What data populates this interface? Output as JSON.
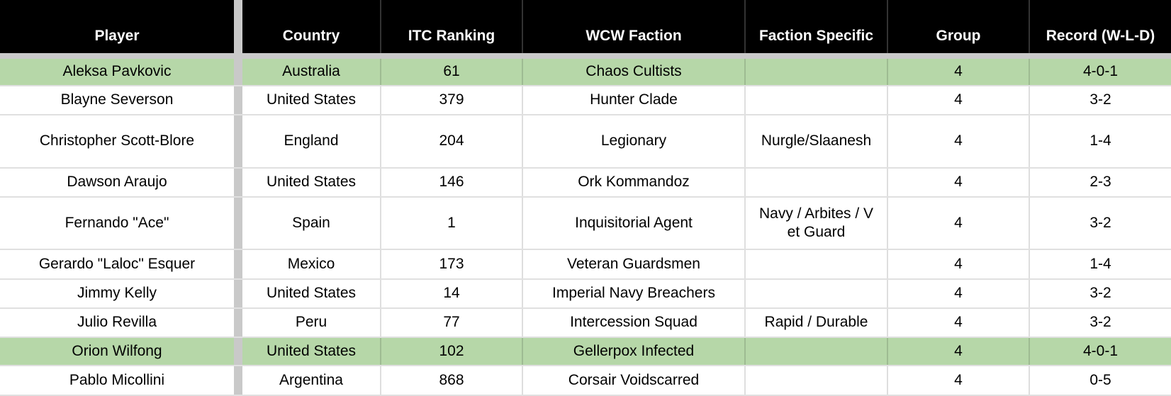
{
  "table": {
    "columns": [
      {
        "key": "player",
        "label": "Player"
      },
      {
        "key": "country",
        "label": "Country"
      },
      {
        "key": "itc_ranking",
        "label": "ITC Ranking"
      },
      {
        "key": "wcw_faction",
        "label": "WCW Faction"
      },
      {
        "key": "faction_specific",
        "label": "Faction Specific"
      },
      {
        "key": "group",
        "label": "Group"
      },
      {
        "key": "record",
        "label": "Record (W-L-D)"
      }
    ],
    "rows": [
      {
        "player": "Aleksa Pavkovic",
        "country": "Australia",
        "itc_ranking": "61",
        "wcw_faction": "Chaos Cultists",
        "faction_specific": "",
        "group": "4",
        "record": "4-0-1",
        "highlighted": true
      },
      {
        "player": "Blayne Severson",
        "country": "United States",
        "itc_ranking": "379",
        "wcw_faction": "Hunter Clade",
        "faction_specific": "",
        "group": "4",
        "record": "3-2",
        "highlighted": false
      },
      {
        "player": "Christopher Scott-Blore",
        "country": "England",
        "itc_ranking": "204",
        "wcw_faction": "Legionary",
        "faction_specific": "Nurgle/Slaanesh",
        "group": "4",
        "record": "1-4",
        "highlighted": false
      },
      {
        "player": "Dawson Araujo",
        "country": "United States",
        "itc_ranking": "146",
        "wcw_faction": "Ork Kommandoz",
        "faction_specific": "",
        "group": "4",
        "record": "2-3",
        "highlighted": false
      },
      {
        "player": "Fernando \"Ace\"",
        "country": "Spain",
        "itc_ranking": "1",
        "wcw_faction": "Inquisitorial Agent",
        "faction_specific": "Navy / Arbites / Vet Guard",
        "group": "4",
        "record": "3-2",
        "highlighted": false
      },
      {
        "player": "Gerardo \"Laloc\" Esquer",
        "country": "Mexico",
        "itc_ranking": "173",
        "wcw_faction": "Veteran Guardsmen",
        "faction_specific": "",
        "group": "4",
        "record": "1-4",
        "highlighted": false
      },
      {
        "player": "Jimmy Kelly",
        "country": "United States",
        "itc_ranking": "14",
        "wcw_faction": "Imperial Navy Breachers",
        "faction_specific": "",
        "group": "4",
        "record": "3-2",
        "highlighted": false
      },
      {
        "player": "Julio Revilla",
        "country": "Peru",
        "itc_ranking": "77",
        "wcw_faction": "Intercession Squad",
        "faction_specific": "Rapid / Durable",
        "group": "4",
        "record": "3-2",
        "highlighted": false
      },
      {
        "player": "Orion Wilfong",
        "country": "United States",
        "itc_ranking": "102",
        "wcw_faction": "Gellerpox Infected",
        "faction_specific": "",
        "group": "4",
        "record": "4-0-1",
        "highlighted": true
      },
      {
        "player": "Pablo Micollini",
        "country": "Argentina",
        "itc_ranking": "868",
        "wcw_faction": "Corsair Voidscarred",
        "faction_specific": "",
        "group": "4",
        "record": "0-5",
        "highlighted": false
      }
    ]
  },
  "colors": {
    "header_bg": "#000000",
    "header_text": "#ffffff",
    "highlight_green": "#b6d7a8",
    "frozen_divider": "#c9c9c9",
    "gridline": "#dddddd",
    "row_bg": "#ffffff"
  }
}
